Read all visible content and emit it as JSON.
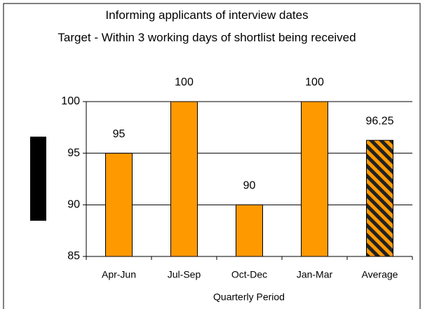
{
  "chart_data": {
    "type": "bar",
    "title": "Informing applicants of interview dates",
    "subtitle": "Target - Within 3 working days of shortlist being received",
    "x_label": "Quarterly Period",
    "categories": [
      "Apr-Jun",
      "Jul-Sep",
      "Oct-Dec",
      "Jan-Mar",
      "Average"
    ],
    "values": [
      95,
      100,
      90,
      100,
      96.25
    ],
    "colors": [
      "#ff9900",
      "#ff9900",
      "#ff9900",
      "#ff9900",
      "#ff9900"
    ],
    "hatched": [
      false,
      false,
      false,
      false,
      true
    ],
    "ylim": [
      85,
      100
    ],
    "yticks": [
      85,
      90,
      95,
      100
    ],
    "grid": true
  }
}
